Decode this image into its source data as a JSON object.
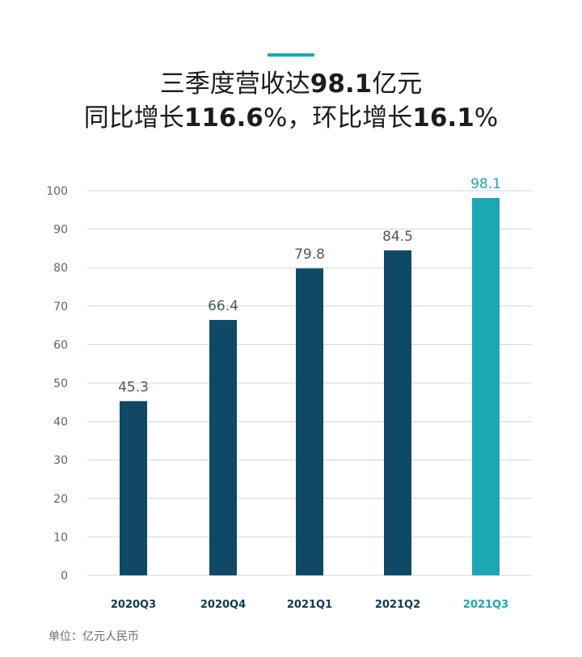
{
  "header": {
    "title_line1": [
      "三季度营收达",
      "98.1",
      "亿元"
    ],
    "title_line2": [
      "同比增长",
      "116.6",
      "%，环比增长",
      "16.1",
      "%"
    ]
  },
  "unit_note": "单位：亿元人民币",
  "colors": {
    "bar": "#0e4966",
    "highlight": "#1ba8b5",
    "axis_text": "#666666",
    "grid": "#d5d5d5"
  },
  "chart_data": {
    "type": "bar",
    "categories": [
      "2020Q3",
      "2020Q4",
      "2021Q1",
      "2021Q2",
      "2021Q3"
    ],
    "values": [
      45.3,
      66.4,
      79.8,
      84.5,
      98.1
    ],
    "value_labels": [
      "45.3",
      "66.4",
      "79.8",
      "84.5",
      "98.1"
    ],
    "highlight_index": 4,
    "ylim": [
      0,
      100
    ],
    "yticks": [
      0,
      10,
      20,
      30,
      40,
      50,
      60,
      70,
      80,
      90,
      100
    ],
    "grid": true
  }
}
